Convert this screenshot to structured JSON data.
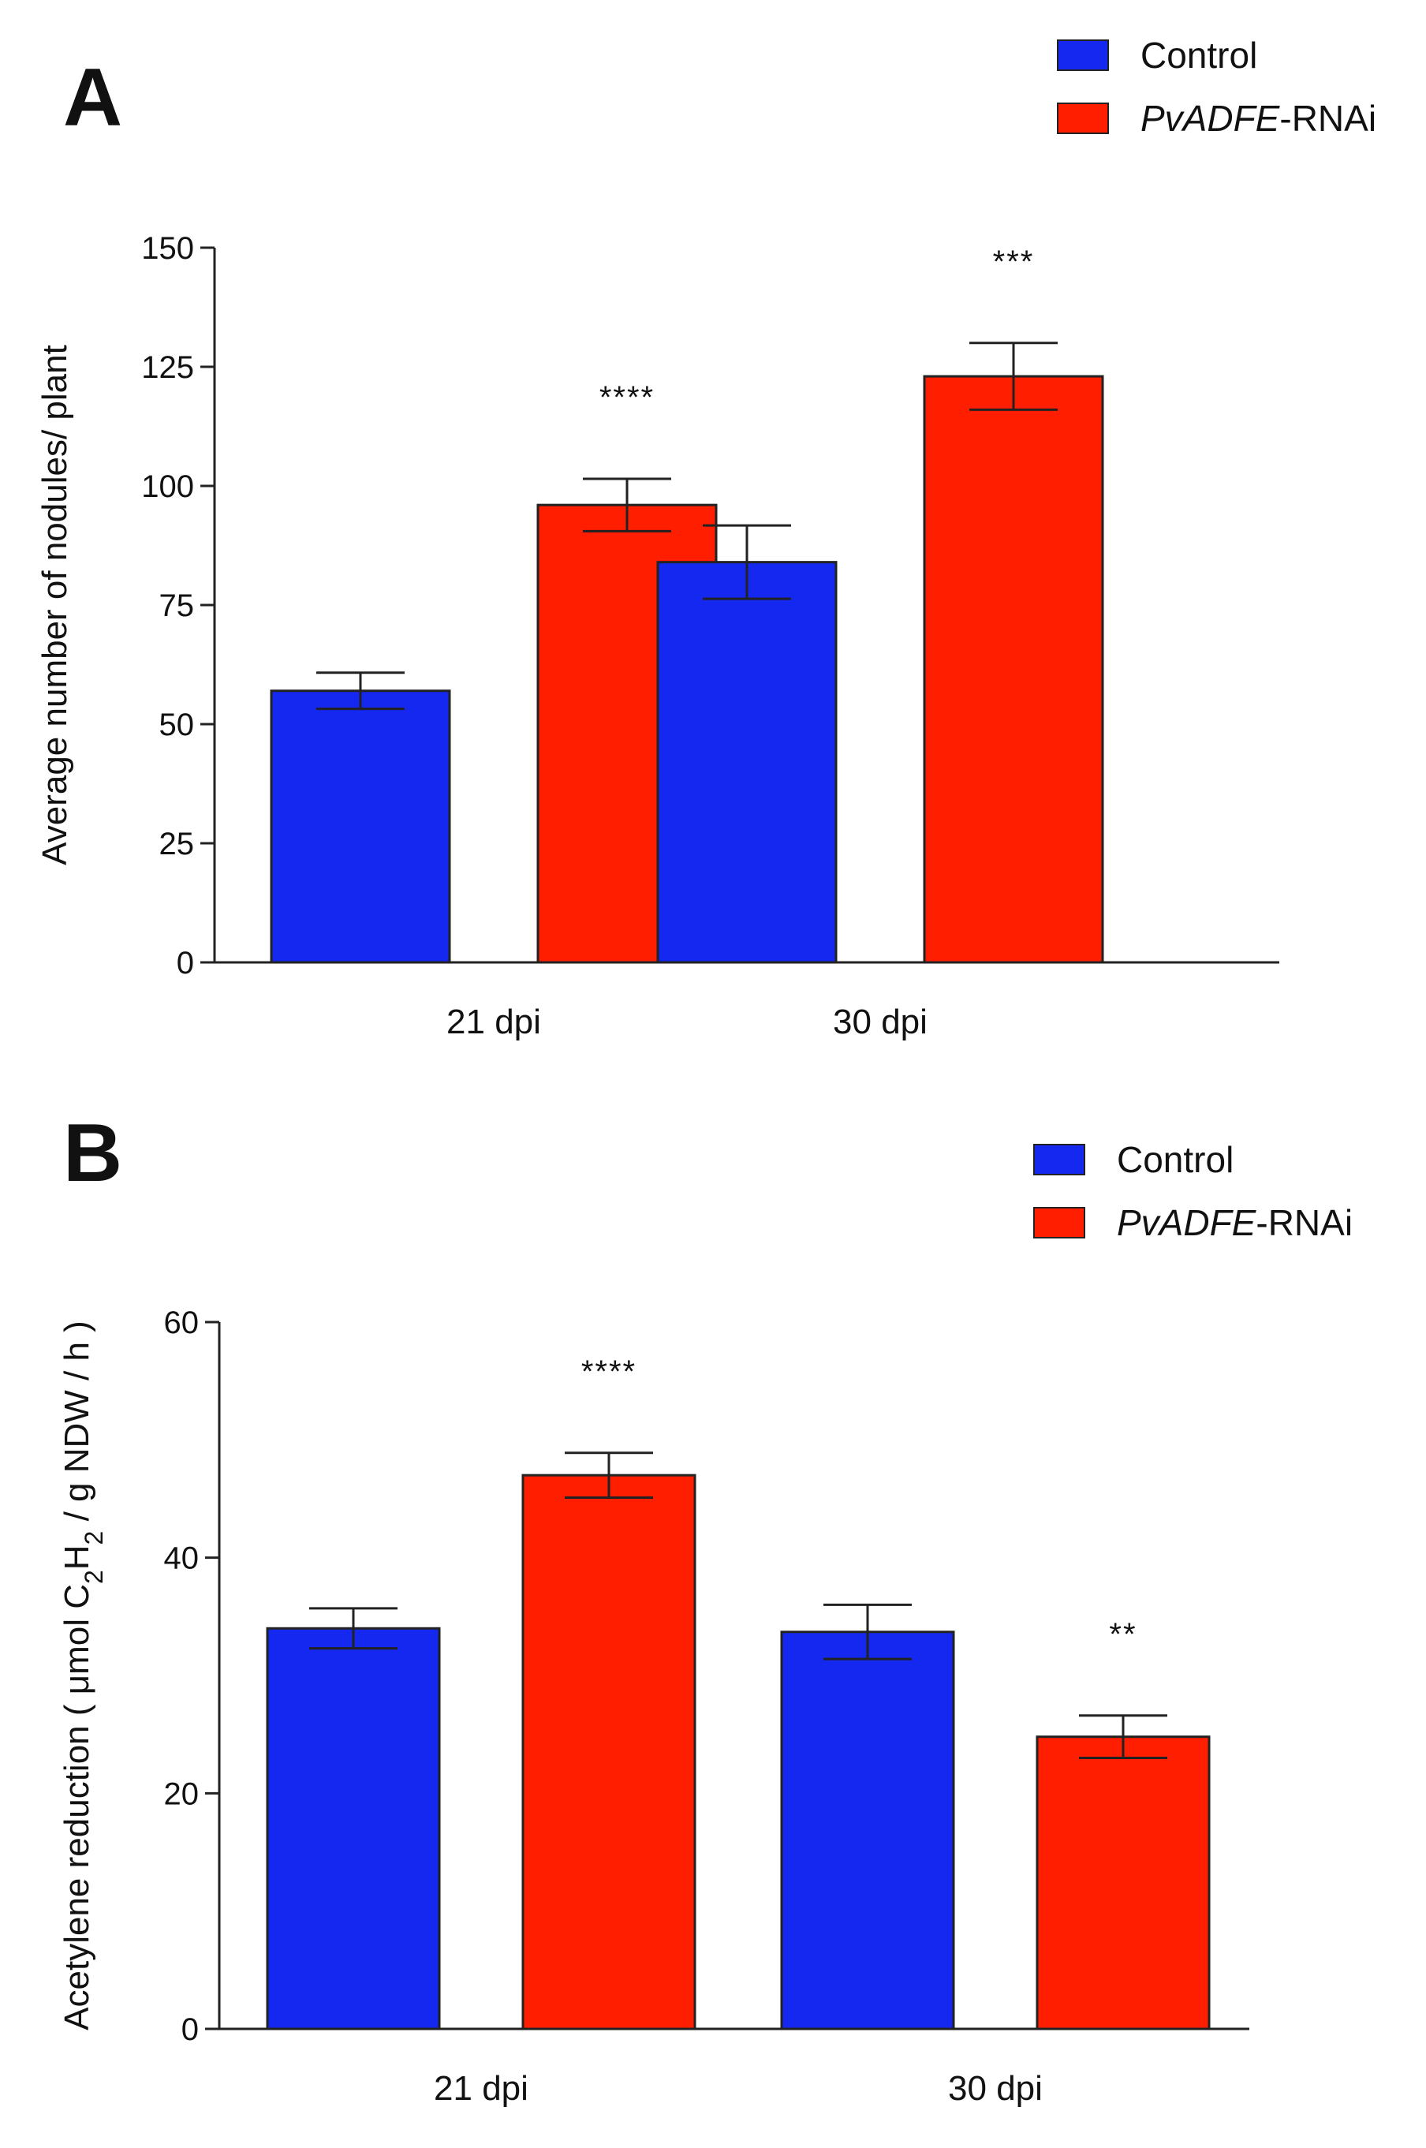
{
  "colors": {
    "control": "#1428F0",
    "rnai": "#FF1E00",
    "axis": "#222222"
  },
  "chart_data": [
    {
      "panel": "A",
      "type": "bar",
      "legend": [
        {
          "name": "Control",
          "italic_part": "",
          "suffix": "Control"
        },
        {
          "name": "PvADFE-RNAi",
          "italic_part": "PvADFE",
          "suffix": "-RNAi"
        }
      ],
      "categories": [
        "21 dpi",
        "30 dpi"
      ],
      "series": [
        {
          "name": "Control",
          "values": [
            57,
            84
          ],
          "errors": [
            3.8,
            7.7
          ]
        },
        {
          "name": "PvADFE-RNAi",
          "values": [
            96,
            123
          ],
          "errors": [
            5.5,
            7
          ]
        }
      ],
      "significance": [
        [
          "",
          "****"
        ],
        [
          "",
          "***"
        ]
      ],
      "ylabel": "Average number of nodules/ plant",
      "ylim": [
        0,
        150
      ],
      "yticks": [
        "0",
        "25",
        "50",
        "75",
        "100",
        "125",
        "150"
      ]
    },
    {
      "panel": "B",
      "type": "bar",
      "legend": [
        {
          "name": "Control",
          "italic_part": "",
          "suffix": "Control"
        },
        {
          "name": "PvADFE-RNAi",
          "italic_part": "PvADFE",
          "suffix": "-RNAi"
        }
      ],
      "categories": [
        "21 dpi",
        "30 dpi"
      ],
      "series": [
        {
          "name": "Control",
          "values": [
            34,
            33.7
          ],
          "errors": [
            1.7,
            2.3
          ]
        },
        {
          "name": "PvADFE-RNAi",
          "values": [
            47,
            24.8
          ],
          "errors": [
            1.9,
            1.8
          ]
        }
      ],
      "significance": [
        [
          "",
          "****"
        ],
        [
          "",
          "**"
        ]
      ],
      "ylabel_parts": [
        "Acetylene reduction ( μmol C",
        "2",
        "H",
        "2",
        " / g NDW / h )"
      ],
      "ylim": [
        0,
        60
      ],
      "yticks": [
        "0",
        "20",
        "40",
        "60"
      ]
    }
  ]
}
